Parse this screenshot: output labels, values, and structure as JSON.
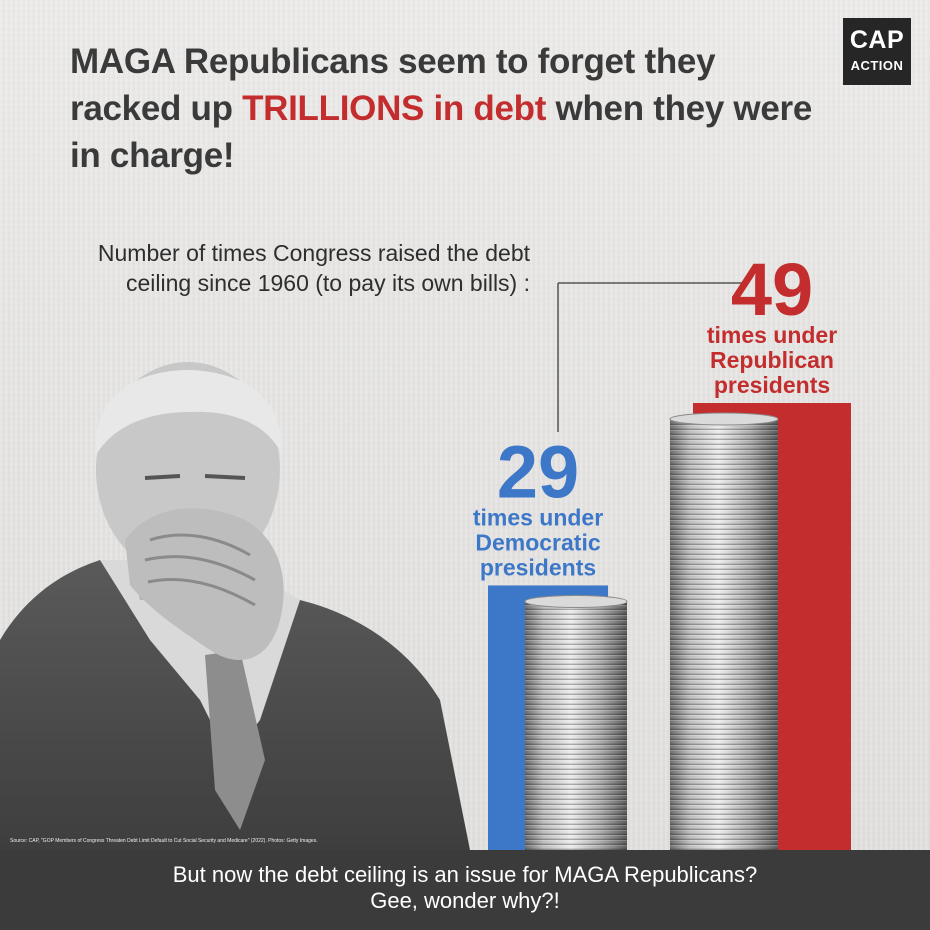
{
  "brand": {
    "logo_line1": "CAP",
    "logo_line2": "ACTION"
  },
  "headline": {
    "part1": "MAGA Republicans seem to forget they racked up ",
    "highlight": "TRILLIONS in debt",
    "part2": " when they were in charge!"
  },
  "chart_data": {
    "type": "bar",
    "title": "Number of times Congress raised the debt ceiling since 1960 (to pay its own bills) :",
    "categories": [
      "times under Democratic presidents",
      "times under Republican presidents"
    ],
    "values": [
      29,
      49
    ],
    "value_labels": [
      "29",
      "49"
    ],
    "category_lines": [
      [
        "times under",
        "Democratic",
        "presidents"
      ],
      [
        "times under",
        "Republican",
        "presidents"
      ]
    ],
    "colors": [
      "#3d77c8",
      "#c32d2d"
    ],
    "ylim": [
      0,
      49
    ],
    "grid": false,
    "legend": "none"
  },
  "footer": {
    "line1": "But now the debt ceiling is an issue for MAGA Republicans?",
    "line2": "Gee, wonder why?!"
  },
  "source": "Source: CAP, \"GOP Members of Congress Threaten Debt Limit Default to Cut Social Security and Medicare\" (2022). Photos: Getty Images."
}
